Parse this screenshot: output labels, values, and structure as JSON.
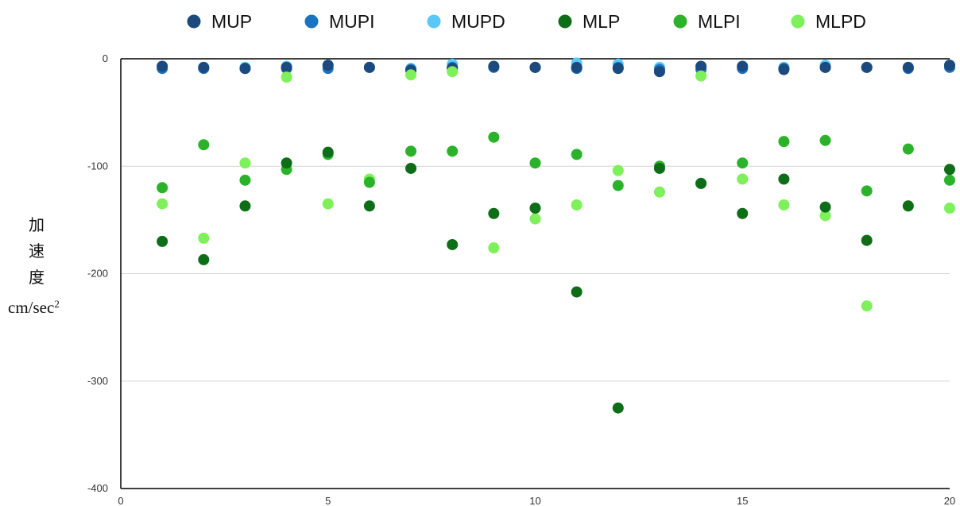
{
  "chart_data": {
    "type": "scatter",
    "title": "",
    "xlabel": "",
    "ylabel_chars": [
      "加",
      "速",
      "度"
    ],
    "ylabel_unit": "cm/sec",
    "ylabel_unit_sup": "2",
    "xlim": [
      0,
      20
    ],
    "ylim": [
      -400,
      0
    ],
    "x_ticks": [
      "0",
      "5",
      "10",
      "15",
      "20"
    ],
    "y_ticks": [
      "0",
      "-100",
      "-200",
      "-300",
      "-400"
    ],
    "grid": "horizontal",
    "legend_position": "top",
    "x": [
      1,
      2,
      3,
      4,
      5,
      6,
      7,
      8,
      9,
      10,
      11,
      12,
      13,
      14,
      15,
      16,
      17,
      18,
      19,
      20
    ],
    "series": [
      {
        "name": "MUPD",
        "color": "#5ac8fa",
        "values": [
          -7,
          -8,
          -8,
          -7,
          -6,
          -8,
          -9,
          -5,
          -7,
          -8,
          -4,
          -5,
          -8,
          -8,
          -7,
          -8,
          -6,
          -8,
          -8,
          -6
        ]
      },
      {
        "name": "MUPI",
        "color": "#1a73c0",
        "values": [
          -9,
          -9,
          -9,
          -9,
          -9,
          -8,
          -10,
          -8,
          -8,
          -8,
          -9,
          -8,
          -10,
          -10,
          -9,
          -9,
          -8,
          -8,
          -9,
          -8
        ]
      },
      {
        "name": "MUP",
        "color": "#1c4a7e",
        "values": [
          -7,
          -8,
          -9,
          -8,
          -6,
          -8,
          -11,
          -9,
          -7,
          -8,
          -8,
          -9,
          -12,
          -7,
          -7,
          -10,
          -8,
          -8,
          -8,
          -6
        ]
      },
      {
        "name": "MLPD",
        "color": "#7df05a",
        "values": [
          -135,
          -167,
          -97,
          -17,
          -135,
          -112,
          -15,
          -12,
          -176,
          -149,
          -136,
          -104,
          -124,
          -16,
          -112,
          -136,
          -146,
          -230,
          -137,
          -139
        ]
      },
      {
        "name": "MLPI",
        "color": "#2ab32a",
        "values": [
          -120,
          -80,
          -113,
          -103,
          -89,
          -115,
          -86,
          -86,
          -73,
          -97,
          -89,
          -118,
          -100,
          -116,
          -97,
          -77,
          -76,
          -123,
          -84,
          -113
        ]
      },
      {
        "name": "MLP",
        "color": "#0d6e17",
        "values": [
          -170,
          -187,
          -137,
          -97,
          -87,
          -137,
          -102,
          -173,
          -144,
          -139,
          -217,
          -325,
          -102,
          -116,
          -144,
          -112,
          -138,
          -169,
          -137,
          -103
        ]
      }
    ],
    "legend_order": [
      "MUP",
      "MUPI",
      "MUPD",
      "MLP",
      "MLPI",
      "MLPD"
    ]
  }
}
